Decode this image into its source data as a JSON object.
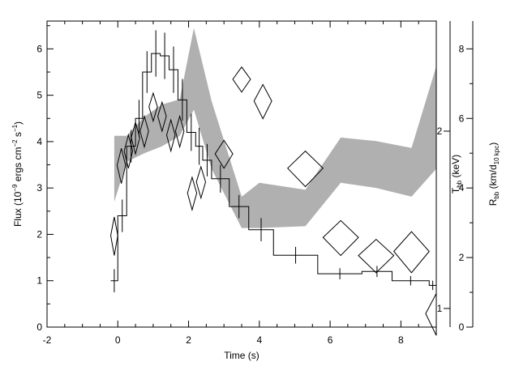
{
  "chart_data": {
    "type": "line",
    "xlabel": "Time (s)",
    "xlim": [
      -2,
      9
    ],
    "xticks": [
      "-2",
      "0",
      "2",
      "4",
      "6",
      "8"
    ],
    "left_axis": {
      "label": "Flux (10⁻⁹ ergs cm⁻² s⁻¹)",
      "ylim": [
        0,
        6.6
      ],
      "ticks": [
        "0",
        "1",
        "2",
        "3",
        "4",
        "5",
        "6"
      ]
    },
    "right_axis_temperature": {
      "label": "T_bb (keV)",
      "tick_values": [
        1,
        2
      ],
      "ticks": [
        "1",
        "2"
      ]
    },
    "right_axis_radius": {
      "label": "R_bb (km/d_10 kpc)",
      "ylim": [
        0,
        8.8
      ],
      "ticks": [
        "0",
        "2",
        "4",
        "6",
        "8"
      ]
    },
    "series": [
      {
        "kind": "step-histogram with error bars (left axis)",
        "x_edges": [
          -0.2,
          0.0,
          0.25,
          0.5,
          0.7,
          0.95,
          1.2,
          1.45,
          1.7,
          1.95,
          2.2,
          2.4,
          2.65,
          3.15,
          3.7,
          4.4,
          5.65,
          6.9,
          7.75,
          8.8,
          9.0
        ],
        "y": [
          1.0,
          2.4,
          3.9,
          4.5,
          5.5,
          5.9,
          5.85,
          5.55,
          4.9,
          4.2,
          3.9,
          3.6,
          3.2,
          2.6,
          2.1,
          1.55,
          1.15,
          1.2,
          1.0,
          0.9
        ],
        "yerr": [
          0.25,
          0.35,
          0.35,
          0.4,
          0.45,
          0.5,
          0.5,
          0.5,
          0.45,
          0.4,
          0.4,
          0.35,
          0.3,
          0.25,
          0.25,
          0.18,
          0.12,
          0.12,
          0.1,
          0.1
        ]
      },
      {
        "kind": "temperature points with errors, diamonds (right kT axis)",
        "x": [
          -0.1,
          0.1,
          0.3,
          0.5,
          0.75,
          1.0,
          1.25,
          1.5,
          1.75,
          2.1,
          2.35,
          3.0,
          3.5,
          4.1,
          5.3,
          6.3,
          7.3,
          8.3,
          9.0
        ],
        "xerr": [
          0.1,
          0.12,
          0.12,
          0.12,
          0.12,
          0.12,
          0.12,
          0.12,
          0.12,
          0.13,
          0.13,
          0.25,
          0.25,
          0.25,
          0.5,
          0.5,
          0.5,
          0.5,
          0.3
        ],
        "y": [
          1.33,
          1.75,
          1.85,
          1.95,
          2.0,
          2.2,
          2.12,
          1.97,
          2.0,
          1.57,
          1.64,
          1.83,
          2.45,
          2.25,
          1.73,
          1.32,
          1.23,
          1.25,
          0.98
        ],
        "yerr": [
          0.1,
          0.12,
          0.12,
          0.12,
          0.12,
          0.12,
          0.12,
          0.12,
          0.12,
          0.1,
          0.1,
          0.1,
          0.12,
          0.15,
          0.12,
          0.09,
          0.08,
          0.1,
          0.08
        ]
      },
      {
        "kind": "radius 1-sigma band, grey shaded (right radius axis)",
        "x": [
          -0.1,
          0.25,
          0.75,
          1.25,
          1.75,
          2.15,
          2.65,
          3.5,
          4.0,
          5.3,
          6.3,
          7.3,
          8.3,
          9.0
        ],
        "y_low": [
          3.6,
          4.75,
          5.0,
          5.2,
          5.5,
          6.25,
          4.55,
          2.85,
          2.85,
          2.9,
          4.15,
          4.0,
          3.75,
          4.55
        ],
        "y_high": [
          5.5,
          5.5,
          6.05,
          6.4,
          6.55,
          8.6,
          6.5,
          3.75,
          4.15,
          3.95,
          5.45,
          5.35,
          5.15,
          7.5
        ]
      }
    ]
  }
}
